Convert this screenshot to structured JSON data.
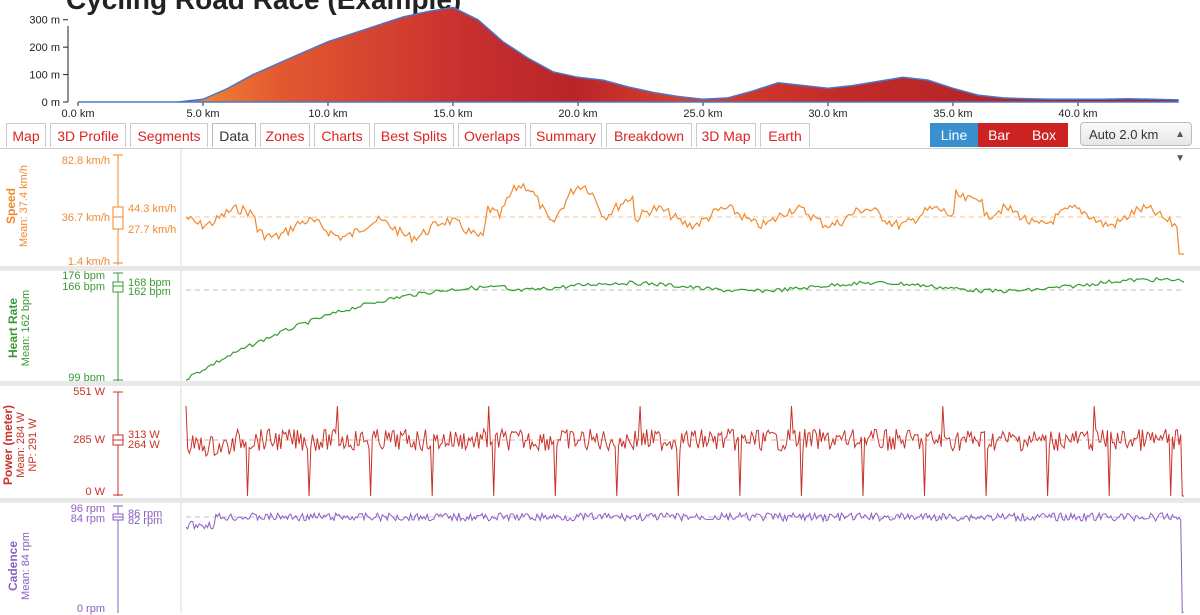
{
  "page": {
    "title": "Cycling Road Race (Example)"
  },
  "elevation": {
    "y_ticks": [
      "300 m",
      "200 m",
      "100 m",
      "0 m"
    ],
    "x_ticks": [
      "0.0 km",
      "5.0 km",
      "10.0 km",
      "15.0 km",
      "20.0 km",
      "25.0 km",
      "30.0 km",
      "35.0 km",
      "40.0 km"
    ]
  },
  "tabs": [
    {
      "label": "Map"
    },
    {
      "label": "3D Profile"
    },
    {
      "label": "Segments"
    },
    {
      "label": "Data"
    },
    {
      "label": "Zones"
    },
    {
      "label": "Charts"
    },
    {
      "label": "Best Splits"
    },
    {
      "label": "Overlaps"
    },
    {
      "label": "Summary"
    },
    {
      "label": "Breakdown"
    },
    {
      "label": "3D Map"
    },
    {
      "label": "Earth"
    }
  ],
  "active_tab": "Data",
  "modes": [
    {
      "label": "Line",
      "color": "#3a8fcf"
    },
    {
      "label": "Bar",
      "color": "#cc2222"
    },
    {
      "label": "Box",
      "color": "#cc2222"
    }
  ],
  "split_select": {
    "value": "Auto 2.0 km"
  },
  "panels": {
    "speed": {
      "title": "Speed",
      "subtitle": "Mean: 37.4 km/h",
      "color": "#f08a2e",
      "max": "82.8 km/h",
      "median": "36.7 km/h",
      "q3": "44.3 km/h",
      "q1": "27.7 km/h",
      "min": "1.4 km/h"
    },
    "hr": {
      "title": "Heart Rate",
      "subtitle": "Mean: 162 bpm",
      "color": "#3a9b35",
      "max": "176 bpm",
      "median": "166 bpm",
      "q3": "168 bpm",
      "q1": "162 bpm",
      "min": "99 bpm"
    },
    "power": {
      "title": "Power (meter)",
      "subtitle": "Mean: 284 W",
      "subtitle2": "NP: 291 W",
      "color": "#c8332a",
      "max": "551 W",
      "median": "285 W",
      "q3": "313 W",
      "q1": "264 W",
      "min": "0 W"
    },
    "cadence": {
      "title": "Cadence",
      "subtitle": "Mean: 84 rpm",
      "color": "#8a5fc0",
      "max": "96 rpm",
      "median": "84 rpm",
      "q3": "86 rpm",
      "q1": "82 rpm",
      "min": "0 rpm"
    }
  },
  "chart_data": [
    {
      "type": "area",
      "title": "",
      "xlabel": "",
      "ylabel": "",
      "x_unit": "km",
      "y_unit": "m",
      "xlim": [
        0,
        44
      ],
      "ylim": [
        0,
        350
      ],
      "x": [
        0,
        1,
        2,
        3,
        4,
        5,
        6,
        7,
        8,
        9,
        10,
        11,
        12,
        13,
        14,
        15,
        16,
        17,
        18,
        19,
        20,
        21,
        22,
        23,
        24,
        25,
        26,
        27,
        28,
        29,
        30,
        31,
        32,
        33,
        34,
        35,
        36,
        37,
        38,
        39,
        40,
        41,
        42,
        43,
        44
      ],
      "y": [
        0,
        0,
        0,
        0,
        0,
        10,
        50,
        100,
        140,
        180,
        220,
        250,
        280,
        310,
        330,
        345,
        300,
        220,
        160,
        110,
        90,
        80,
        55,
        35,
        20,
        10,
        15,
        40,
        70,
        60,
        50,
        60,
        75,
        90,
        80,
        50,
        25,
        15,
        12,
        10,
        10,
        10,
        12,
        10,
        8
      ]
    }
  ]
}
